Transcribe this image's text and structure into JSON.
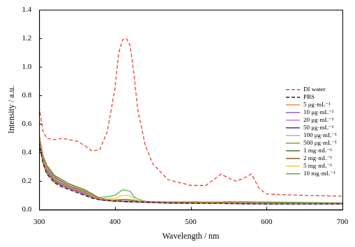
{
  "chart_data": {
    "type": "line",
    "xlabel": "Wavelength / nm",
    "ylabel": "Intensity / a.u.",
    "x": [
      300,
      305,
      310,
      320,
      330,
      340,
      350,
      360,
      370,
      380,
      390,
      400,
      405,
      410,
      415,
      420,
      425,
      430,
      440,
      450,
      470,
      500,
      520,
      540,
      550,
      560,
      570,
      580,
      590,
      600,
      650,
      700
    ],
    "xlim": [
      300,
      700
    ],
    "xticks": [
      300,
      400,
      500,
      600,
      700
    ],
    "ylim": [
      0,
      1.4
    ],
    "yticks": [
      {
        "value": 0,
        "label": "0.0"
      },
      0.2,
      0.4,
      0.6,
      0.8,
      {
        "value": 1,
        "label": "1.0"
      },
      1.2,
      1.4
    ],
    "grid": false,
    "legend": "right",
    "series": [
      {
        "name": "DI water",
        "color": "#e8403a",
        "line_style": "dashed",
        "values": [
          0.72,
          0.55,
          0.5,
          0.49,
          0.5,
          0.49,
          0.48,
          0.45,
          0.41,
          0.42,
          0.55,
          0.85,
          1.1,
          1.19,
          1.2,
          1.15,
          0.95,
          0.7,
          0.45,
          0.32,
          0.21,
          0.17,
          0.17,
          0.25,
          0.22,
          0.2,
          0.22,
          0.25,
          0.15,
          0.11,
          0.1,
          0.095
        ]
      },
      {
        "name": "PBS",
        "color": "#1a1a2e",
        "line_style": "dashed",
        "values": [
          0.47,
          0.33,
          0.25,
          0.19,
          0.16,
          0.14,
          0.12,
          0.1,
          0.08,
          0.07,
          0.065,
          0.06,
          0.06,
          0.058,
          0.057,
          0.056,
          0.055,
          0.055,
          0.053,
          0.05,
          0.048,
          0.045,
          0.044,
          0.044,
          0.043,
          0.043,
          0.042,
          0.042,
          0.042,
          0.04,
          0.04,
          0.04
        ]
      },
      {
        "name": "5 μg·mL⁻¹",
        "color": "#f08a3c",
        "line_style": "solid",
        "values": [
          0.5,
          0.36,
          0.29,
          0.22,
          0.19,
          0.16,
          0.14,
          0.12,
          0.095,
          0.075,
          0.068,
          0.063,
          0.062,
          0.06,
          0.059,
          0.058,
          0.057,
          0.056,
          0.054,
          0.052,
          0.05,
          0.048,
          0.047,
          0.047,
          0.046,
          0.046,
          0.045,
          0.045,
          0.045,
          0.044,
          0.043,
          0.042
        ]
      },
      {
        "name": "10 μg·mL⁻¹",
        "color": "#a05cc0",
        "line_style": "solid",
        "values": [
          0.49,
          0.35,
          0.28,
          0.21,
          0.18,
          0.155,
          0.135,
          0.115,
          0.09,
          0.072,
          0.066,
          0.062,
          0.061,
          0.059,
          0.058,
          0.057,
          0.056,
          0.055,
          0.053,
          0.051,
          0.049,
          0.047,
          0.046,
          0.046,
          0.045,
          0.045,
          0.044,
          0.044,
          0.044,
          0.043,
          0.042,
          0.041
        ]
      },
      {
        "name": "20 μg·mL⁻¹",
        "color": "#c07ad0",
        "line_style": "solid",
        "values": [
          0.48,
          0.34,
          0.27,
          0.205,
          0.175,
          0.15,
          0.13,
          0.11,
          0.088,
          0.071,
          0.065,
          0.061,
          0.06,
          0.058,
          0.057,
          0.056,
          0.055,
          0.054,
          0.052,
          0.05,
          0.048,
          0.046,
          0.045,
          0.045,
          0.044,
          0.044,
          0.043,
          0.043,
          0.043,
          0.042,
          0.041,
          0.04
        ]
      },
      {
        "name": "50 μg·mL⁻¹",
        "color": "#5b2c8f",
        "line_style": "solid",
        "values": [
          0.47,
          0.34,
          0.265,
          0.2,
          0.17,
          0.148,
          0.128,
          0.108,
          0.086,
          0.07,
          0.064,
          0.06,
          0.059,
          0.057,
          0.056,
          0.055,
          0.054,
          0.053,
          0.051,
          0.049,
          0.047,
          0.045,
          0.044,
          0.044,
          0.043,
          0.043,
          0.042,
          0.042,
          0.042,
          0.041,
          0.04,
          0.039
        ]
      },
      {
        "name": "100 μg·mL⁻¹",
        "color": "#b4b4b4",
        "line_style": "solid",
        "values": [
          0.49,
          0.35,
          0.28,
          0.215,
          0.185,
          0.158,
          0.138,
          0.118,
          0.092,
          0.074,
          0.067,
          0.063,
          0.062,
          0.06,
          0.059,
          0.058,
          0.057,
          0.056,
          0.054,
          0.052,
          0.05,
          0.048,
          0.047,
          0.047,
          0.046,
          0.046,
          0.045,
          0.045,
          0.045,
          0.044,
          0.043,
          0.042
        ]
      },
      {
        "name": "500 μg·mL⁻¹",
        "color": "#8a9a3a",
        "line_style": "solid",
        "values": [
          0.51,
          0.37,
          0.3,
          0.23,
          0.2,
          0.17,
          0.15,
          0.13,
          0.1,
          0.078,
          0.069,
          0.064,
          0.063,
          0.062,
          0.061,
          0.06,
          0.059,
          0.057,
          0.055,
          0.053,
          0.051,
          0.049,
          0.049,
          0.049,
          0.049,
          0.049,
          0.049,
          0.049,
          0.049,
          0.048,
          0.047,
          0.046
        ]
      },
      {
        "name": "1 mg·mL⁻¹",
        "color": "#556b2f",
        "line_style": "solid",
        "values": [
          0.52,
          0.38,
          0.31,
          0.24,
          0.21,
          0.18,
          0.16,
          0.14,
          0.11,
          0.08,
          0.07,
          0.065,
          0.064,
          0.063,
          0.062,
          0.061,
          0.06,
          0.058,
          0.056,
          0.054,
          0.052,
          0.05,
          0.05,
          0.05,
          0.05,
          0.05,
          0.05,
          0.05,
          0.05,
          0.05,
          0.049,
          0.048
        ]
      },
      {
        "name": "2 mg·mL⁻¹",
        "color": "#8b5a2b",
        "line_style": "solid",
        "values": [
          0.5,
          0.36,
          0.29,
          0.225,
          0.195,
          0.165,
          0.145,
          0.125,
          0.098,
          0.076,
          0.07,
          0.068,
          0.07,
          0.072,
          0.072,
          0.07,
          0.065,
          0.06,
          0.056,
          0.054,
          0.052,
          0.05,
          0.05,
          0.05,
          0.05,
          0.05,
          0.05,
          0.05,
          0.05,
          0.049,
          0.048,
          0.047
        ]
      },
      {
        "name": "5 mg·mL⁻¹",
        "color": "#e6d030",
        "line_style": "solid",
        "values": [
          0.46,
          0.32,
          0.25,
          0.19,
          0.16,
          0.14,
          0.12,
          0.1,
          0.085,
          0.075,
          0.075,
          0.08,
          0.09,
          0.1,
          0.1,
          0.095,
          0.075,
          0.065,
          0.058,
          0.054,
          0.052,
          0.05,
          0.05,
          0.05,
          0.05,
          0.05,
          0.05,
          0.05,
          0.05,
          0.049,
          0.048,
          0.047
        ]
      },
      {
        "name": "10 mg·mL⁻¹",
        "color": "#4caf50",
        "line_style": "solid",
        "values": [
          0.48,
          0.33,
          0.26,
          0.2,
          0.17,
          0.15,
          0.13,
          0.11,
          0.09,
          0.085,
          0.09,
          0.1,
          0.12,
          0.14,
          0.135,
          0.13,
          0.09,
          0.075,
          0.06,
          0.056,
          0.055,
          0.055,
          0.054,
          0.054,
          0.056,
          0.055,
          0.055,
          0.055,
          0.054,
          0.053,
          0.05,
          0.048
        ]
      }
    ]
  }
}
